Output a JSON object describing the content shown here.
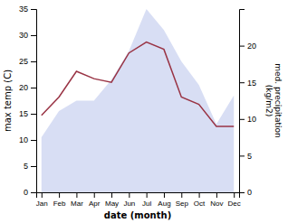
{
  "chart_data": {
    "type": "area",
    "xlabel": "date (month)",
    "ylabel": "max temp (C)",
    "y2label": "med. precipitation\n(kg/m2)",
    "categories": [
      "Jan",
      "Feb",
      "Mar",
      "Apr",
      "May",
      "Jun",
      "Jul",
      "Aug",
      "Sep",
      "Oct",
      "Nov",
      "Dec"
    ],
    "series": [
      {
        "type": "area",
        "color": "#c8d0f0",
        "values": [
          10.5,
          15.5,
          17.5,
          17.5,
          21.5,
          27.0,
          35.0,
          31.0,
          25.0,
          20.5,
          13.0,
          18.5
        ]
      },
      {
        "type": "line",
        "axis": "y2",
        "color": "#993344",
        "values": [
          10.5,
          13.0,
          16.5,
          15.5,
          15.0,
          19.0,
          20.5,
          19.5,
          13.0,
          12.0,
          9.0,
          9.0
        ]
      }
    ],
    "ylim": [
      0,
      35
    ],
    "yticks": [
      0,
      5,
      10,
      15,
      20,
      25,
      30,
      35
    ],
    "y2lim": [
      0,
      25
    ],
    "y2ticks": [
      0,
      5,
      10,
      15,
      20
    ],
    "grid": false
  }
}
